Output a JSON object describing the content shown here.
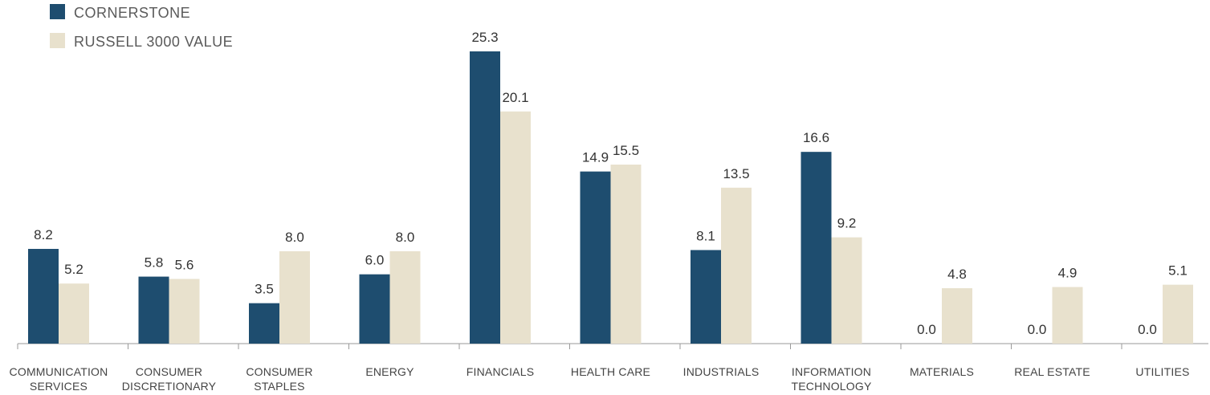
{
  "chart_data": {
    "type": "bar",
    "categories": [
      [
        "COMMUNICATION",
        "SERVICES"
      ],
      [
        "CONSUMER",
        "DISCRETIONARY"
      ],
      [
        "CONSUMER",
        "STAPLES"
      ],
      [
        "ENERGY"
      ],
      [
        "FINANCIALS"
      ],
      [
        "HEALTH CARE"
      ],
      [
        "INDUSTRIALS"
      ],
      [
        "INFORMATION",
        "TECHNOLOGY"
      ],
      [
        "MATERIALS"
      ],
      [
        "REAL ESTATE"
      ],
      [
        "UTILITIES"
      ]
    ],
    "series": [
      {
        "name": "CORNERSTONE",
        "color": "#1e4d6f",
        "values": [
          8.2,
          5.8,
          3.5,
          6.0,
          25.3,
          14.9,
          8.1,
          16.6,
          0.0,
          0.0,
          0.0
        ],
        "labels": [
          "8.2",
          "5.8",
          "3.5",
          "6.0",
          "25.3",
          "14.9",
          "8.1",
          "16.6",
          "0.0",
          "0.0",
          "0.0"
        ]
      },
      {
        "name": "RUSSELL 3000 VALUE",
        "color": "#e8e1cd",
        "values": [
          5.2,
          5.6,
          8.0,
          8.0,
          20.1,
          15.5,
          13.5,
          9.2,
          4.8,
          4.9,
          5.1
        ],
        "labels": [
          "5.2",
          "5.6",
          "8.0",
          "8.0",
          "20.1",
          "15.5",
          "13.5",
          "9.2",
          "4.8",
          "4.9",
          "5.1"
        ]
      }
    ],
    "ylim": [
      0,
      25.3
    ],
    "grid": false,
    "legend": "top-left"
  }
}
